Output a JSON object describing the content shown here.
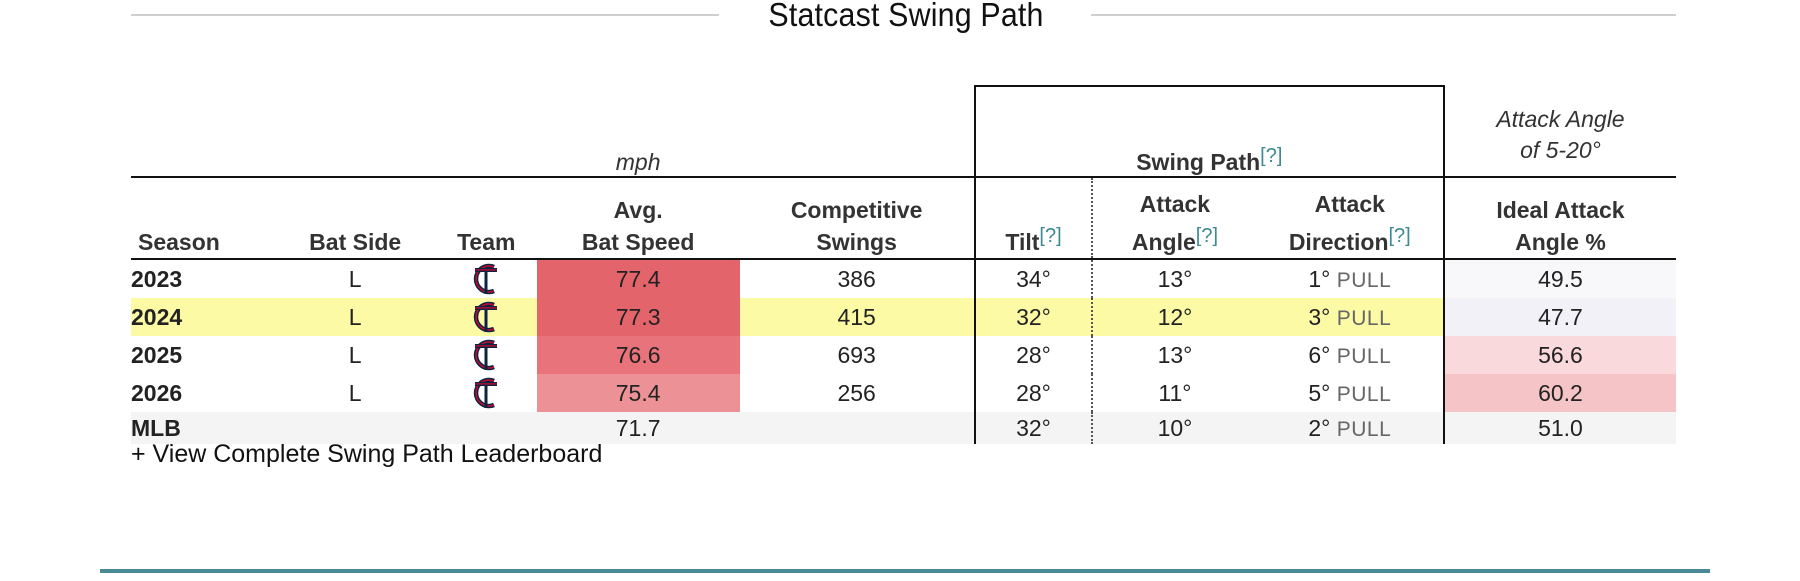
{
  "title": "Statcast Swing Path",
  "groups": {
    "mph": "mph",
    "swing_path": "Swing Path",
    "swing_path_q": "[?]",
    "attack_note_1": "Attack Angle",
    "attack_note_2": "of 5-20°"
  },
  "columns": {
    "season": "Season",
    "bat_side": "Bat Side",
    "team": "Team",
    "bat_speed_1": "Avg.",
    "bat_speed_2": "Bat Speed",
    "competitive_1": "Competitive",
    "competitive_2": "Swings",
    "tilt": "Tilt",
    "tilt_q": "[?]",
    "attack_angle_1": "Attack",
    "attack_angle_2": "Angle",
    "attack_angle_q": "[?]",
    "attack_dir_1": "Attack",
    "attack_dir_2": "Direction",
    "attack_dir_q": "[?]",
    "ideal_1": "Ideal Attack",
    "ideal_2": "Angle %"
  },
  "rows": [
    {
      "season": "2023",
      "bat_side": "L",
      "team_icon": "twins-logo-icon",
      "bat_speed": "77.4",
      "bat_speed_color": "#e4646b",
      "competitive": "386",
      "tilt": "34°",
      "attack_angle": "13°",
      "dir_deg": "1°",
      "dir_side": "PULL",
      "ideal": "49.5",
      "ideal_color": "#f8f8fb"
    },
    {
      "season": "2024",
      "bat_side": "L",
      "team_icon": "twins-logo-icon",
      "bat_speed": "77.3",
      "bat_speed_color": "#e4646b",
      "competitive": "415",
      "tilt": "32°",
      "attack_angle": "12°",
      "dir_deg": "3°",
      "dir_side": "PULL",
      "ideal": "47.7",
      "ideal_color": "#f1f1f7"
    },
    {
      "season": "2025",
      "bat_side": "L",
      "team_icon": "twins-logo-icon",
      "bat_speed": "76.6",
      "bat_speed_color": "#e8737a",
      "competitive": "693",
      "tilt": "28°",
      "attack_angle": "13°",
      "dir_deg": "6°",
      "dir_side": "PULL",
      "ideal": "56.6",
      "ideal_color": "#f9d9db"
    },
    {
      "season": "2026",
      "bat_side": "L",
      "team_icon": "twins-logo-icon",
      "bat_speed": "75.4",
      "bat_speed_color": "#ec9296",
      "competitive": "256",
      "tilt": "28°",
      "attack_angle": "11°",
      "dir_deg": "5°",
      "dir_side": "PULL",
      "ideal": "60.2",
      "ideal_color": "#f5c4c7"
    }
  ],
  "mlb": {
    "season": "MLB",
    "bat_speed": "71.7",
    "tilt": "32°",
    "attack_angle": "10°",
    "dir_deg": "2°",
    "dir_side": "PULL",
    "ideal": "51.0"
  },
  "highlight_row": "2024",
  "highlight_color": "#fdfaa6",
  "accent_color": "#4a8a96",
  "link_text": "+ View Complete Swing Path Leaderboard"
}
